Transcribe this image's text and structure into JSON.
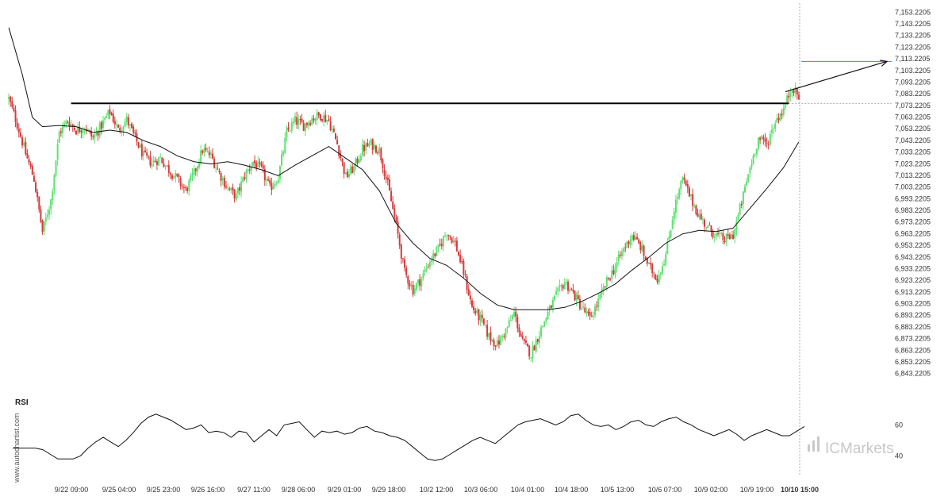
{
  "chart_data": {
    "type": "candlestick",
    "title": "",
    "price_axis": {
      "ylim": [
        6838.2205,
        7158.2205
      ],
      "ticks": [
        "7,153.2205",
        "7,143.2205",
        "7,133.2205",
        "7,123.2205",
        "7,113.2205",
        "7,103.2205",
        "7,093.2205",
        "7,083.2205",
        "7,073.2205",
        "7,063.2205",
        "7,053.2205",
        "7,043.2205",
        "7,033.2205",
        "7,023.2205",
        "7,013.2205",
        "7,003.2205",
        "6,993.2205",
        "6,983.2205",
        "6,973.2205",
        "6,963.2205",
        "6,953.2205",
        "6,943.2205",
        "6,933.2205",
        "6,923.2205",
        "6,913.2205",
        "6,903.2205",
        "6,893.2205",
        "6,883.2205",
        "6,873.2205",
        "6,863.2205",
        "6,853.2205",
        "6,843.2205"
      ]
    },
    "x_axis": {
      "ticks": [
        "9/22 09:00",
        "9/25 04:00",
        "9/25 23:00",
        "9/26 16:00",
        "9/27 11:00",
        "9/28 06:00",
        "9/29 01:00",
        "9/29 18:00",
        "10/2 12:00",
        "10/3 06:00",
        "10/4 01:00",
        "10/4 18:00",
        "10/5 13:00",
        "10/6 07:00",
        "10/9 02:00",
        "10/9 19:00",
        "10/10 15:00"
      ],
      "highlighted": "10/10 15:00"
    },
    "close_path": [
      [
        0,
        7079
      ],
      [
        5,
        7057
      ],
      [
        10,
        7032
      ],
      [
        15,
        7010
      ],
      [
        20,
        6965
      ],
      [
        25,
        6992
      ],
      [
        30,
        7050
      ],
      [
        35,
        7060
      ],
      [
        40,
        7052
      ],
      [
        45,
        7055
      ],
      [
        50,
        7045
      ],
      [
        55,
        7056
      ],
      [
        60,
        7068
      ],
      [
        65,
        7052
      ],
      [
        70,
        7061
      ],
      [
        75,
        7045
      ],
      [
        80,
        7030
      ],
      [
        85,
        7024
      ],
      [
        90,
        7028
      ],
      [
        95,
        7018
      ],
      [
        100,
        7010
      ],
      [
        105,
        7000
      ],
      [
        110,
        7015
      ],
      [
        115,
        7035
      ],
      [
        120,
        7030
      ],
      [
        125,
        7015
      ],
      [
        130,
        7002
      ],
      [
        135,
        6995
      ],
      [
        140,
        7013
      ],
      [
        145,
        7025
      ],
      [
        150,
        7018
      ],
      [
        155,
        7002
      ],
      [
        160,
        7012
      ],
      [
        165,
        7050
      ],
      [
        170,
        7060
      ],
      [
        175,
        7056
      ],
      [
        180,
        7062
      ],
      [
        185,
        7065
      ],
      [
        190,
        7060
      ],
      [
        195,
        7040
      ],
      [
        200,
        7012
      ],
      [
        205,
        7020
      ],
      [
        210,
        7036
      ],
      [
        215,
        7040
      ],
      [
        220,
        7035
      ],
      [
        225,
        7005
      ],
      [
        230,
        6970
      ],
      [
        235,
        6930
      ],
      [
        240,
        6915
      ],
      [
        245,
        6925
      ],
      [
        250,
        6940
      ],
      [
        255,
        6950
      ],
      [
        260,
        6965
      ],
      [
        265,
        6955
      ],
      [
        270,
        6930
      ],
      [
        275,
        6900
      ],
      [
        280,
        6890
      ],
      [
        285,
        6875
      ],
      [
        290,
        6868
      ],
      [
        295,
        6880
      ],
      [
        300,
        6895
      ],
      [
        305,
        6870
      ],
      [
        310,
        6860
      ],
      [
        315,
        6878
      ],
      [
        320,
        6895
      ],
      [
        325,
        6910
      ],
      [
        330,
        6922
      ],
      [
        335,
        6912
      ],
      [
        340,
        6900
      ],
      [
        345,
        6890
      ],
      [
        350,
        6905
      ],
      [
        355,
        6922
      ],
      [
        360,
        6935
      ],
      [
        365,
        6950
      ],
      [
        370,
        6962
      ],
      [
        375,
        6952
      ],
      [
        380,
        6935
      ],
      [
        385,
        6925
      ],
      [
        390,
        6945
      ],
      [
        395,
        6985
      ],
      [
        400,
        7010
      ],
      [
        405,
        6993
      ],
      [
        410,
        6978
      ],
      [
        415,
        6968
      ],
      [
        420,
        6962
      ],
      [
        425,
        6958
      ],
      [
        430,
        6962
      ],
      [
        435,
        6990
      ],
      [
        440,
        7020
      ],
      [
        445,
        7045
      ],
      [
        450,
        7040
      ],
      [
        455,
        7060
      ],
      [
        460,
        7070
      ],
      [
        465,
        7090
      ],
      [
        469,
        7080
      ]
    ],
    "ma_path": [
      [
        0,
        7140
      ],
      [
        8,
        7100
      ],
      [
        14,
        7063
      ],
      [
        20,
        7055
      ],
      [
        30,
        7056
      ],
      [
        40,
        7055
      ],
      [
        50,
        7050
      ],
      [
        60,
        7052
      ],
      [
        70,
        7050
      ],
      [
        80,
        7043
      ],
      [
        90,
        7038
      ],
      [
        100,
        7030
      ],
      [
        110,
        7025
      ],
      [
        120,
        7023
      ],
      [
        130,
        7025
      ],
      [
        140,
        7022
      ],
      [
        150,
        7018
      ],
      [
        160,
        7013
      ],
      [
        170,
        7022
      ],
      [
        180,
        7030
      ],
      [
        190,
        7038
      ],
      [
        200,
        7028
      ],
      [
        210,
        7018
      ],
      [
        220,
        7000
      ],
      [
        230,
        6972
      ],
      [
        240,
        6955
      ],
      [
        250,
        6942
      ],
      [
        260,
        6936
      ],
      [
        270,
        6925
      ],
      [
        280,
        6912
      ],
      [
        290,
        6902
      ],
      [
        300,
        6898
      ],
      [
        310,
        6898
      ],
      [
        320,
        6898
      ],
      [
        330,
        6900
      ],
      [
        340,
        6905
      ],
      [
        350,
        6912
      ],
      [
        360,
        6920
      ],
      [
        370,
        6932
      ],
      [
        380,
        6943
      ],
      [
        390,
        6955
      ],
      [
        400,
        6963
      ],
      [
        410,
        6966
      ],
      [
        420,
        6965
      ],
      [
        430,
        6968
      ],
      [
        440,
        6985
      ],
      [
        450,
        7002
      ],
      [
        460,
        7020
      ],
      [
        469,
        7042
      ]
    ],
    "resistance": {
      "value": 7075,
      "from": 37,
      "to": 463
    },
    "current_level": 7075,
    "target_level": 7111,
    "forecast_arrow": [
      [
        461,
        7085
      ],
      [
        487,
        7111
      ]
    ],
    "rsi": {
      "title": "RSI",
      "ticks": [
        "60",
        "40"
      ],
      "ylim": [
        32,
        72
      ],
      "values": [
        [
          0,
          45
        ],
        [
          3,
          45
        ],
        [
          6,
          45
        ],
        [
          8,
          44
        ],
        [
          10,
          41
        ],
        [
          12,
          38
        ],
        [
          14,
          38
        ],
        [
          16,
          38
        ],
        [
          18,
          40
        ],
        [
          20,
          45
        ],
        [
          22,
          49
        ],
        [
          24,
          52
        ],
        [
          26,
          49
        ],
        [
          28,
          46
        ],
        [
          30,
          50
        ],
        [
          32,
          55
        ],
        [
          34,
          61
        ],
        [
          36,
          65
        ],
        [
          38,
          67
        ],
        [
          40,
          65
        ],
        [
          42,
          63
        ],
        [
          44,
          60
        ],
        [
          46,
          57
        ],
        [
          48,
          58
        ],
        [
          50,
          60
        ],
        [
          52,
          55
        ],
        [
          54,
          56
        ],
        [
          56,
          55
        ],
        [
          58,
          52
        ],
        [
          60,
          56
        ],
        [
          62,
          55
        ],
        [
          64,
          49
        ],
        [
          66,
          53
        ],
        [
          68,
          57
        ],
        [
          70,
          53
        ],
        [
          72,
          60
        ],
        [
          74,
          61
        ],
        [
          76,
          62
        ],
        [
          78,
          57
        ],
        [
          80,
          52
        ],
        [
          82,
          56
        ],
        [
          84,
          55
        ],
        [
          86,
          56
        ],
        [
          88,
          54
        ],
        [
          90,
          55
        ],
        [
          92,
          58
        ],
        [
          94,
          59
        ],
        [
          96,
          56
        ],
        [
          98,
          55
        ],
        [
          100,
          53
        ],
        [
          102,
          52
        ],
        [
          104,
          50
        ],
        [
          106,
          46
        ],
        [
          108,
          42
        ],
        [
          110,
          38
        ],
        [
          112,
          37
        ],
        [
          114,
          38
        ],
        [
          116,
          41
        ],
        [
          118,
          44
        ],
        [
          120,
          47
        ],
        [
          122,
          50
        ],
        [
          124,
          52
        ],
        [
          126,
          50
        ],
        [
          128,
          48
        ],
        [
          130,
          52
        ],
        [
          132,
          56
        ],
        [
          134,
          60
        ],
        [
          136,
          62
        ],
        [
          138,
          63
        ],
        [
          140,
          64
        ],
        [
          142,
          62
        ],
        [
          144,
          60
        ],
        [
          146,
          62
        ],
        [
          148,
          66
        ],
        [
          150,
          67
        ],
        [
          152,
          63
        ],
        [
          154,
          60
        ],
        [
          156,
          59
        ],
        [
          158,
          60
        ],
        [
          160,
          57
        ],
        [
          162,
          59
        ],
        [
          164,
          62
        ],
        [
          166,
          63
        ],
        [
          168,
          60
        ],
        [
          170,
          59
        ],
        [
          172,
          62
        ],
        [
          174,
          64
        ],
        [
          176,
          65
        ],
        [
          178,
          62
        ],
        [
          180,
          60
        ],
        [
          182,
          57
        ],
        [
          184,
          55
        ],
        [
          186,
          53
        ],
        [
          188,
          55
        ],
        [
          190,
          57
        ],
        [
          192,
          54
        ],
        [
          194,
          50
        ],
        [
          196,
          53
        ],
        [
          198,
          55
        ],
        [
          200,
          57
        ],
        [
          202,
          55
        ],
        [
          204,
          53
        ],
        [
          206,
          53
        ],
        [
          208,
          56
        ],
        [
          210,
          59
        ]
      ]
    }
  },
  "watermark": "www.autochartist.com",
  "brand": {
    "name": "ICMarkets",
    "color": "#c8c8c8"
  },
  "colors": {
    "bull": "#5ee06f",
    "bear": "#d63a3a",
    "ma_line": "#111111",
    "resistance": "#000000",
    "target_line": "#e05a1e",
    "current_line": "#888888",
    "forecast_arrow": "#111111",
    "rsi_line": "#111111",
    "axis_text": "#333333"
  }
}
